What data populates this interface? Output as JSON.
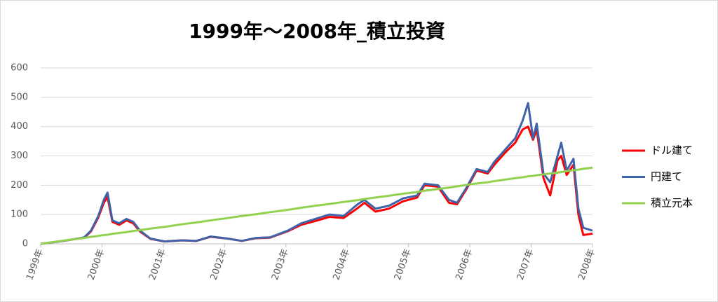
{
  "chart_data": {
    "type": "line",
    "title": "1999年～2008年_積立投資",
    "x": [
      1999.0,
      1999.37,
      1999.71,
      1999.82,
      1999.94,
      2000.03,
      2000.09,
      2000.17,
      2000.28,
      2000.4,
      2000.51,
      2000.62,
      2000.79,
      2001.02,
      2001.31,
      2001.54,
      2001.77,
      2002.05,
      2002.28,
      2002.51,
      2002.74,
      2003.03,
      2003.25,
      2003.48,
      2003.71,
      2003.94,
      2004.17,
      2004.28,
      2004.46,
      2004.68,
      2004.91,
      2005.14,
      2005.26,
      2005.48,
      2005.66,
      2005.79,
      2005.94,
      2006.11,
      2006.29,
      2006.4,
      2006.57,
      2006.74,
      2006.86,
      2006.95,
      2007.03,
      2007.09,
      2007.2,
      2007.31,
      2007.43,
      2007.49,
      2007.58,
      2007.69,
      2007.77,
      2007.85,
      2008.0
    ],
    "series": [
      {
        "name": "ドル建て",
        "color": "#ff0000",
        "values": [
          0,
          10,
          21,
          42,
          90,
          140,
          160,
          75,
          65,
          80,
          70,
          42,
          17,
          8,
          12,
          10,
          24,
          18,
          10,
          19,
          21,
          43,
          65,
          78,
          92,
          88,
          122,
          140,
          110,
          120,
          145,
          158,
          200,
          195,
          140,
          135,
          185,
          250,
          240,
          270,
          310,
          345,
          390,
          400,
          355,
          390,
          225,
          165,
          285,
          300,
          235,
          270,
          100,
          30,
          35
        ]
      },
      {
        "name": "円建て",
        "color": "#4062a8",
        "values": [
          0,
          10,
          22,
          45,
          95,
          150,
          175,
          80,
          70,
          85,
          75,
          45,
          18,
          8,
          12,
          10,
          25,
          18,
          10,
          20,
          22,
          45,
          70,
          85,
          100,
          95,
          135,
          150,
          120,
          130,
          155,
          165,
          205,
          200,
          150,
          140,
          190,
          255,
          245,
          280,
          320,
          360,
          420,
          480,
          360,
          410,
          240,
          210,
          300,
          345,
          250,
          290,
          120,
          55,
          45
        ]
      },
      {
        "name": "積立元本",
        "color": "#92d050",
        "values": [
          0,
          11,
          20,
          24,
          27,
          30,
          31,
          34,
          37,
          40,
          44,
          47,
          52,
          58,
          67,
          73,
          80,
          88,
          95,
          101,
          108,
          116,
          123,
          130,
          136,
          143,
          149,
          153,
          158,
          164,
          171,
          177,
          181,
          187,
          192,
          196,
          201,
          206,
          210,
          214,
          219,
          224,
          227,
          230,
          232,
          234,
          237,
          240,
          243,
          245,
          248,
          251,
          253,
          256,
          260
        ]
      }
    ],
    "xlim": [
      1999,
      2008
    ],
    "xticks": [
      {
        "value": 1999,
        "label": "1999年"
      },
      {
        "value": 2000,
        "label": "2000年"
      },
      {
        "value": 2001,
        "label": "2001年"
      },
      {
        "value": 2002,
        "label": "2002年"
      },
      {
        "value": 2003,
        "label": "2003年"
      },
      {
        "value": 2004,
        "label": "2004年"
      },
      {
        "value": 2005,
        "label": "2005年"
      },
      {
        "value": 2006,
        "label": "2006年"
      },
      {
        "value": 2007,
        "label": "2007年"
      },
      {
        "value": 2008,
        "label": "2008年"
      }
    ],
    "ylim": [
      0,
      600
    ],
    "yticks": [
      0,
      100,
      200,
      300,
      400,
      500,
      600
    ],
    "grid": true,
    "legend": "right"
  }
}
